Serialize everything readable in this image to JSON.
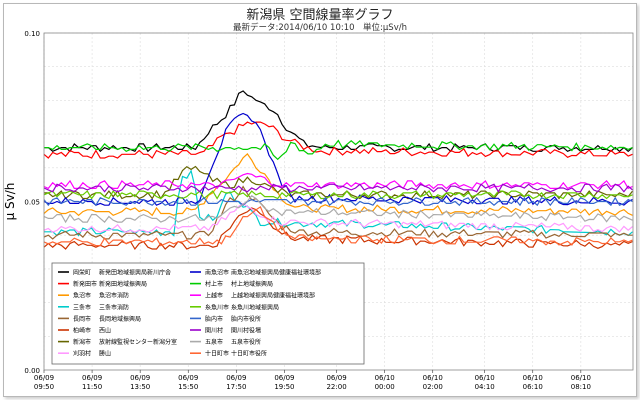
{
  "header": {
    "title": "新潟県 空間線量率グラフ",
    "subtitle": "最新データ:2014/06/10 10:10　単位:μSv/h"
  },
  "chart_data": {
    "type": "line",
    "title": "新潟県 空間線量率グラフ",
    "ylabel": "μ Sv/h",
    "ylim": [
      0.0,
      0.1
    ],
    "yticks": [
      "0.10",
      "0.05",
      "0.00"
    ],
    "yticks_values": [
      0.1,
      0.05,
      0.0
    ],
    "grid": true,
    "legend_position": "bottom-left",
    "xlim": [
      0,
      24.5
    ],
    "xticks": [
      {
        "date": "06/09",
        "time": "09:50",
        "h": 0
      },
      {
        "date": "06/09",
        "time": "11:50",
        "h": 2
      },
      {
        "date": "06/09",
        "time": "13:50",
        "h": 4
      },
      {
        "date": "06/09",
        "time": "15:50",
        "h": 6
      },
      {
        "date": "06/09",
        "time": "17:50",
        "h": 8
      },
      {
        "date": "06/09",
        "time": "19:50",
        "h": 10
      },
      {
        "date": "06/09",
        "time": "22:00",
        "h": 12.17
      },
      {
        "date": "06/10",
        "time": "00:00",
        "h": 14.17
      },
      {
        "date": "06/10",
        "time": "02:00",
        "h": 16.17
      },
      {
        "date": "06/10",
        "time": "04:10",
        "h": 18.33
      },
      {
        "date": "06/10",
        "time": "06:10",
        "h": 20.33
      },
      {
        "date": "06/10",
        "time": "08:10",
        "h": 22.33
      }
    ],
    "series": [
      {
        "name": "岡栄町",
        "sub": "新発田地域振興局新川庁舎",
        "color": "#000000",
        "base": 0.066,
        "points": [
          [
            0,
            0.066
          ],
          [
            6.3,
            0.066
          ],
          [
            7.0,
            0.072
          ],
          [
            7.7,
            0.077
          ],
          [
            8.3,
            0.083
          ],
          [
            9.0,
            0.079
          ],
          [
            9.6,
            0.077
          ],
          [
            10.2,
            0.071
          ],
          [
            10.8,
            0.067
          ],
          [
            11.5,
            0.066
          ],
          [
            24.5,
            0.066
          ]
        ]
      },
      {
        "name": "新発田市",
        "sub": "新発田地域振興局",
        "color": "#ff0000",
        "base": 0.064,
        "points": [
          [
            0,
            0.064
          ],
          [
            6.6,
            0.064
          ],
          [
            7.4,
            0.069
          ],
          [
            8.4,
            0.073
          ],
          [
            9.2,
            0.073
          ],
          [
            10.0,
            0.069
          ],
          [
            10.8,
            0.066
          ],
          [
            11.5,
            0.065
          ],
          [
            24.5,
            0.064
          ]
        ]
      },
      {
        "name": "魚沼市",
        "sub": "魚沼市消防",
        "color": "#ff9900",
        "base": 0.047,
        "points": [
          [
            0,
            0.047
          ],
          [
            6.2,
            0.047
          ],
          [
            7.0,
            0.053
          ],
          [
            7.7,
            0.058
          ],
          [
            8.4,
            0.064
          ],
          [
            9.1,
            0.059
          ],
          [
            9.8,
            0.052
          ],
          [
            10.5,
            0.048
          ],
          [
            24.5,
            0.047
          ]
        ]
      },
      {
        "name": "三条市",
        "sub": "三条市消防",
        "color": "#00cccc",
        "base": 0.041,
        "points": [
          [
            0,
            0.041
          ],
          [
            5.4,
            0.041
          ],
          [
            5.7,
            0.058
          ],
          [
            6.2,
            0.058
          ],
          [
            6.5,
            0.045
          ],
          [
            7.2,
            0.045
          ],
          [
            7.6,
            0.053
          ],
          [
            8.2,
            0.05
          ],
          [
            9.0,
            0.044
          ],
          [
            24.5,
            0.041
          ]
        ]
      },
      {
        "name": "長岡市",
        "sub": "長岡地域振興局",
        "color": "#996633",
        "base": 0.04,
        "points": [
          [
            0,
            0.04
          ],
          [
            6.8,
            0.04
          ],
          [
            7.6,
            0.049
          ],
          [
            8.3,
            0.054
          ],
          [
            9.0,
            0.049
          ],
          [
            9.8,
            0.043
          ],
          [
            10.5,
            0.041
          ],
          [
            24.5,
            0.04
          ]
        ]
      },
      {
        "name": "柏崎市",
        "sub": "西山",
        "color": "#cc3300",
        "base": 0.037,
        "points": [
          [
            0,
            0.037
          ],
          [
            7.1,
            0.037
          ],
          [
            7.9,
            0.044
          ],
          [
            8.7,
            0.049
          ],
          [
            9.4,
            0.044
          ],
          [
            10.2,
            0.039
          ],
          [
            24.5,
            0.037
          ]
        ]
      },
      {
        "name": "新潟市",
        "sub": "放射線監視センター新潟分室",
        "color": "#666600",
        "base": 0.052,
        "points": [
          [
            0,
            0.052
          ],
          [
            5.0,
            0.052
          ],
          [
            5.8,
            0.059
          ],
          [
            6.4,
            0.06
          ],
          [
            7.0,
            0.056
          ],
          [
            7.8,
            0.055
          ],
          [
            8.6,
            0.057
          ],
          [
            9.4,
            0.054
          ],
          [
            10.2,
            0.052
          ],
          [
            24.5,
            0.052
          ]
        ]
      },
      {
        "name": "刈羽村",
        "sub": "勝山",
        "color": "#ff99ff",
        "base": 0.042,
        "points": [
          [
            0,
            0.042
          ],
          [
            7.0,
            0.042
          ],
          [
            7.7,
            0.046
          ],
          [
            8.3,
            0.049
          ],
          [
            8.9,
            0.047
          ],
          [
            9.6,
            0.044
          ],
          [
            24.5,
            0.042
          ]
        ]
      },
      {
        "name": "南魚沼市",
        "sub": "南魚沼地域振興局健康福祉環境部",
        "color": "#0000cc",
        "base": 0.05,
        "points": [
          [
            0,
            0.05
          ],
          [
            6.4,
            0.05
          ],
          [
            7.0,
            0.061
          ],
          [
            7.6,
            0.071
          ],
          [
            8.1,
            0.075
          ],
          [
            8.7,
            0.075
          ],
          [
            9.2,
            0.068
          ],
          [
            9.7,
            0.058
          ],
          [
            10.3,
            0.051
          ],
          [
            24.5,
            0.05
          ]
        ]
      },
      {
        "name": "村上市",
        "sub": "村上地域振興局",
        "color": "#00cc00",
        "base": 0.066,
        "points": [
          [
            0,
            0.066
          ],
          [
            9.2,
            0.066
          ],
          [
            9.8,
            0.062
          ],
          [
            10.3,
            0.068
          ],
          [
            11.0,
            0.064
          ],
          [
            11.7,
            0.067
          ],
          [
            24.5,
            0.066
          ]
        ]
      },
      {
        "name": "上越市",
        "sub": "上越地域振興局健康福祉環境部",
        "color": "#ff00ff",
        "base": 0.055,
        "points": [
          [
            0,
            0.055
          ],
          [
            7.5,
            0.055
          ],
          [
            8.3,
            0.058
          ],
          [
            9.0,
            0.057
          ],
          [
            9.8,
            0.055
          ],
          [
            24.5,
            0.055
          ]
        ]
      },
      {
        "name": "糸魚川市",
        "sub": "糸魚川地域振興局",
        "color": "#66cc00",
        "base": 0.052,
        "points": [
          [
            0,
            0.052
          ],
          [
            24.5,
            0.052
          ]
        ]
      },
      {
        "name": "胎内市",
        "sub": "胎内市役所",
        "color": "#3366cc",
        "base": 0.05,
        "points": [
          [
            0,
            0.05
          ],
          [
            24.5,
            0.05
          ]
        ]
      },
      {
        "name": "関川村",
        "sub": "関川村役場",
        "color": "#9900cc",
        "base": 0.054,
        "points": [
          [
            0,
            0.054
          ],
          [
            24.5,
            0.054
          ]
        ]
      },
      {
        "name": "五泉市",
        "sub": "五泉市役所",
        "color": "#aaaaaa",
        "base": 0.045,
        "points": [
          [
            0,
            0.045
          ],
          [
            7.3,
            0.045
          ],
          [
            8.0,
            0.049
          ],
          [
            8.8,
            0.051
          ],
          [
            9.6,
            0.047
          ],
          [
            24.5,
            0.045
          ]
        ]
      },
      {
        "name": "十日町市",
        "sub": "十日町市役所",
        "color": "#ff6633",
        "base": 0.038,
        "points": [
          [
            0,
            0.038
          ],
          [
            7.4,
            0.038
          ],
          [
            8.2,
            0.044
          ],
          [
            8.9,
            0.048
          ],
          [
            9.6,
            0.043
          ],
          [
            10.4,
            0.039
          ],
          [
            24.5,
            0.038
          ]
        ]
      }
    ]
  }
}
